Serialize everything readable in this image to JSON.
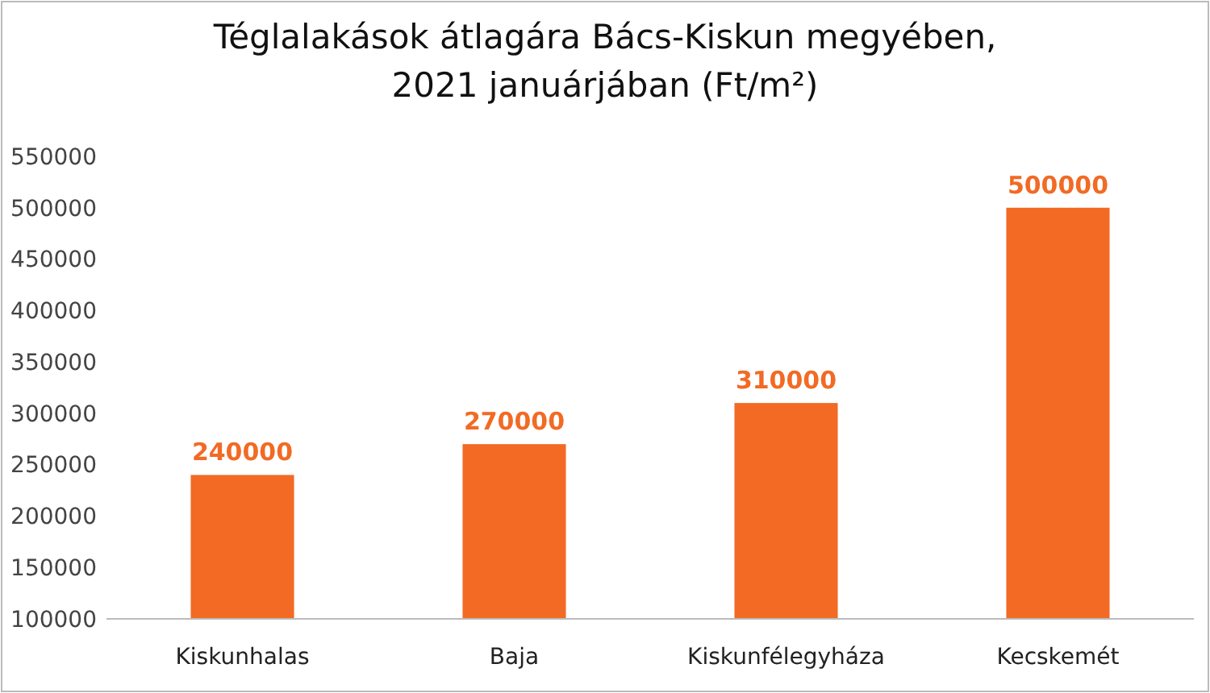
{
  "chart_data": {
    "type": "bar",
    "title": "Téglalakások átlagára Bács-Kiskun megyében,\n2021 januárjában (Ft/m²)",
    "categories": [
      "Kiskunhalas",
      "Baja",
      "Kiskunfélegyháza",
      "Kecskemét"
    ],
    "values": [
      240000,
      270000,
      310000,
      500000
    ],
    "color": "#f26a24",
    "ylim": [
      100000,
      550000
    ],
    "yticks": [
      100000,
      150000,
      200000,
      250000,
      300000,
      350000,
      400000,
      450000,
      500000,
      550000
    ],
    "data_labels": true
  }
}
